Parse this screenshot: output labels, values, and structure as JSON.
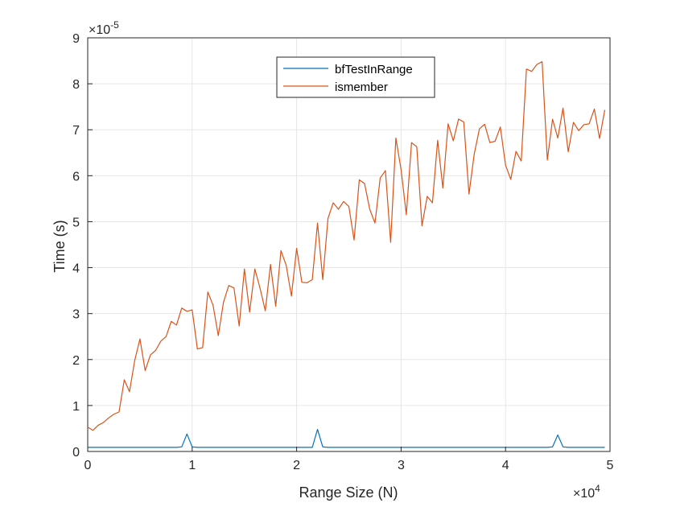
{
  "chart_data": {
    "type": "line",
    "title": "",
    "xlabel": "Range Size (N)",
    "ylabel": "Time (s)",
    "xlim": [
      0,
      50000
    ],
    "ylim": [
      0,
      9e-05
    ],
    "grid": true,
    "legend_position": "top-center",
    "x_ticks": [
      0,
      10000,
      20000,
      30000,
      40000,
      50000
    ],
    "x_tick_labels": [
      "0",
      "1",
      "2",
      "3",
      "4",
      "5"
    ],
    "y_ticks": [
      0,
      1e-05,
      2e-05,
      3e-05,
      4e-05,
      5e-05,
      6e-05,
      7e-05,
      8e-05,
      9e-05
    ],
    "y_tick_labels": [
      "0",
      "1",
      "2",
      "3",
      "4",
      "5",
      "6",
      "7",
      "8",
      "9"
    ],
    "x_exponent_label": {
      "base": "×10",
      "exp": "4"
    },
    "y_exponent_label": {
      "base": "×10",
      "exp": "-5"
    },
    "series": [
      {
        "name": "bfTestInRange",
        "color": "#0072BD",
        "points": [
          [
            0,
            0.09
          ],
          [
            500,
            0.09
          ],
          [
            1000,
            0.09
          ],
          [
            1500,
            0.09
          ],
          [
            2000,
            0.09
          ],
          [
            2500,
            0.09
          ],
          [
            3000,
            0.09
          ],
          [
            3500,
            0.09
          ],
          [
            4000,
            0.09
          ],
          [
            4500,
            0.09
          ],
          [
            5000,
            0.09
          ],
          [
            5500,
            0.09
          ],
          [
            6000,
            0.09
          ],
          [
            6500,
            0.09
          ],
          [
            7000,
            0.09
          ],
          [
            7500,
            0.09
          ],
          [
            8000,
            0.09
          ],
          [
            8500,
            0.09
          ],
          [
            9000,
            0.1
          ],
          [
            9500,
            0.38
          ],
          [
            10000,
            0.1
          ],
          [
            10500,
            0.09
          ],
          [
            11000,
            0.09
          ],
          [
            12000,
            0.09
          ],
          [
            13000,
            0.09
          ],
          [
            14000,
            0.09
          ],
          [
            15000,
            0.09
          ],
          [
            16000,
            0.09
          ],
          [
            17000,
            0.09
          ],
          [
            18000,
            0.09
          ],
          [
            19000,
            0.09
          ],
          [
            20000,
            0.09
          ],
          [
            21000,
            0.09
          ],
          [
            21500,
            0.09
          ],
          [
            22000,
            0.48
          ],
          [
            22500,
            0.1
          ],
          [
            23000,
            0.09
          ],
          [
            24000,
            0.09
          ],
          [
            25000,
            0.09
          ],
          [
            26000,
            0.09
          ],
          [
            27000,
            0.09
          ],
          [
            28000,
            0.09
          ],
          [
            29000,
            0.09
          ],
          [
            30000,
            0.09
          ],
          [
            31000,
            0.09
          ],
          [
            32000,
            0.09
          ],
          [
            33000,
            0.09
          ],
          [
            34000,
            0.09
          ],
          [
            35000,
            0.09
          ],
          [
            36000,
            0.09
          ],
          [
            37000,
            0.09
          ],
          [
            38000,
            0.09
          ],
          [
            39000,
            0.09
          ],
          [
            40000,
            0.09
          ],
          [
            41000,
            0.09
          ],
          [
            42000,
            0.09
          ],
          [
            43000,
            0.09
          ],
          [
            44000,
            0.09
          ],
          [
            44500,
            0.1
          ],
          [
            45000,
            0.36
          ],
          [
            45500,
            0.1
          ],
          [
            46000,
            0.09
          ],
          [
            47000,
            0.09
          ],
          [
            48000,
            0.09
          ],
          [
            49000,
            0.09
          ],
          [
            49500,
            0.09
          ]
        ]
      },
      {
        "name": "ismember",
        "color": "#D95319",
        "points": [
          [
            0,
            0.53
          ],
          [
            500,
            0.46
          ],
          [
            1000,
            0.57
          ],
          [
            1500,
            0.63
          ],
          [
            2000,
            0.73
          ],
          [
            2500,
            0.81
          ],
          [
            3000,
            0.86
          ],
          [
            3500,
            1.56
          ],
          [
            4000,
            1.3
          ],
          [
            4500,
            1.98
          ],
          [
            5000,
            2.45
          ],
          [
            5500,
            1.76
          ],
          [
            6000,
            2.1
          ],
          [
            6500,
            2.2
          ],
          [
            7000,
            2.4
          ],
          [
            7500,
            2.5
          ],
          [
            8000,
            2.83
          ],
          [
            8500,
            2.75
          ],
          [
            9000,
            3.12
          ],
          [
            9500,
            3.05
          ],
          [
            10000,
            3.08
          ],
          [
            10500,
            2.23
          ],
          [
            11000,
            2.26
          ],
          [
            11500,
            3.47
          ],
          [
            12000,
            3.18
          ],
          [
            12500,
            2.52
          ],
          [
            13000,
            3.25
          ],
          [
            13500,
            3.61
          ],
          [
            14000,
            3.56
          ],
          [
            14500,
            2.73
          ],
          [
            15000,
            3.97
          ],
          [
            15500,
            3.03
          ],
          [
            16000,
            3.97
          ],
          [
            16500,
            3.55
          ],
          [
            17000,
            3.06
          ],
          [
            17500,
            4.07
          ],
          [
            18000,
            3.16
          ],
          [
            18500,
            4.37
          ],
          [
            19000,
            4.05
          ],
          [
            19500,
            3.38
          ],
          [
            20000,
            4.42
          ],
          [
            20500,
            3.68
          ],
          [
            21000,
            3.67
          ],
          [
            21500,
            3.74
          ],
          [
            22000,
            4.97
          ],
          [
            22500,
            3.74
          ],
          [
            23000,
            5.07
          ],
          [
            23500,
            5.41
          ],
          [
            24000,
            5.27
          ],
          [
            24500,
            5.44
          ],
          [
            25000,
            5.33
          ],
          [
            25500,
            4.6
          ],
          [
            26000,
            5.91
          ],
          [
            26500,
            5.83
          ],
          [
            27000,
            5.27
          ],
          [
            27500,
            4.97
          ],
          [
            28000,
            5.95
          ],
          [
            28500,
            6.11
          ],
          [
            29000,
            4.55
          ],
          [
            29500,
            6.82
          ],
          [
            30000,
            6.13
          ],
          [
            30500,
            5.15
          ],
          [
            31000,
            6.72
          ],
          [
            31500,
            6.63
          ],
          [
            32000,
            4.91
          ],
          [
            32500,
            5.55
          ],
          [
            33000,
            5.41
          ],
          [
            33500,
            6.77
          ],
          [
            34000,
            5.73
          ],
          [
            34500,
            7.13
          ],
          [
            35000,
            6.76
          ],
          [
            35500,
            7.23
          ],
          [
            36000,
            7.17
          ],
          [
            36500,
            5.6
          ],
          [
            37000,
            6.47
          ],
          [
            37500,
            7.02
          ],
          [
            38000,
            7.12
          ],
          [
            38500,
            6.72
          ],
          [
            39000,
            6.75
          ],
          [
            39500,
            7.06
          ],
          [
            40000,
            6.23
          ],
          [
            40500,
            5.92
          ],
          [
            41000,
            6.53
          ],
          [
            41500,
            6.32
          ],
          [
            42000,
            8.32
          ],
          [
            42500,
            8.27
          ],
          [
            43000,
            8.42
          ],
          [
            43500,
            8.48
          ],
          [
            44000,
            6.34
          ],
          [
            44500,
            7.23
          ],
          [
            45000,
            6.82
          ],
          [
            45500,
            7.47
          ],
          [
            46000,
            6.52
          ],
          [
            46500,
            7.16
          ],
          [
            47000,
            6.98
          ],
          [
            47500,
            7.11
          ],
          [
            48000,
            7.13
          ],
          [
            48500,
            7.45
          ],
          [
            49000,
            6.81
          ],
          [
            49500,
            7.43
          ]
        ]
      }
    ]
  }
}
